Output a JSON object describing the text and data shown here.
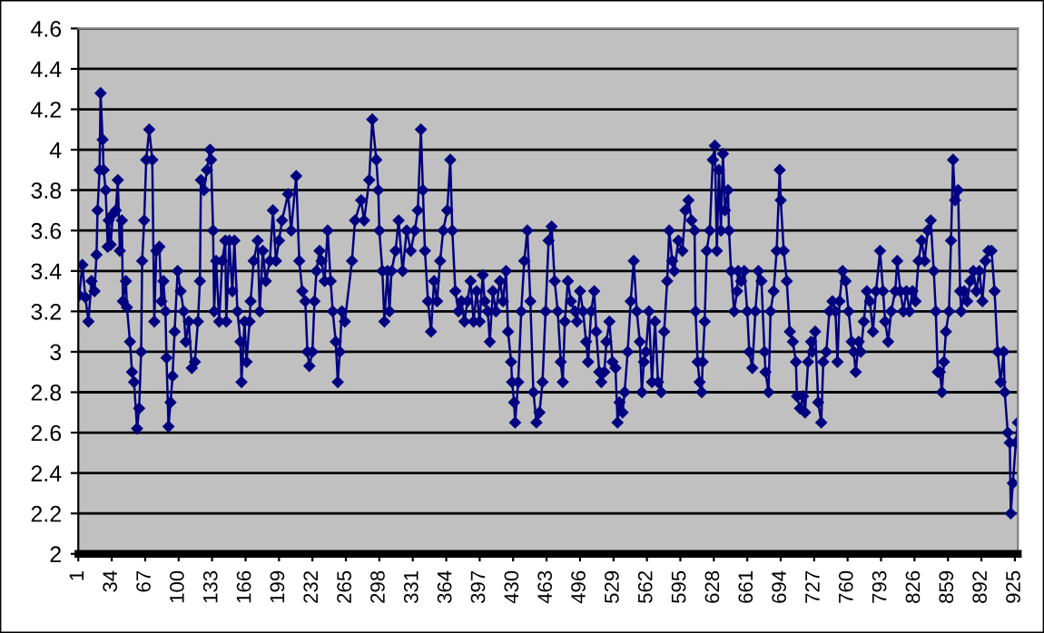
{
  "chart_data": {
    "type": "line",
    "marker": "diamond",
    "line_style": "solid",
    "grid": "y",
    "legend": false,
    "xlim": [
      1,
      928
    ],
    "xticks": [
      1,
      34,
      67,
      100,
      133,
      166,
      199,
      232,
      265,
      298,
      331,
      364,
      397,
      430,
      463,
      496,
      529,
      562,
      595,
      628,
      661,
      694,
      727,
      760,
      793,
      826,
      859,
      892,
      925
    ],
    "ylim": [
      2,
      4.6
    ],
    "yticks": [
      2,
      2.2,
      2.4,
      2.6,
      2.8,
      3,
      3.2,
      3.4,
      3.6,
      3.8,
      4,
      4.2,
      4.4,
      4.6
    ],
    "series": [
      {
        "color": "#000080",
        "x": [
          2,
          5,
          8,
          11,
          14,
          17,
          19,
          20,
          22,
          23,
          25,
          26,
          28,
          30,
          31,
          33,
          35,
          38,
          40,
          42,
          44,
          45,
          48,
          49,
          52,
          54,
          56,
          59,
          61,
          63,
          64,
          66,
          68,
          71,
          74,
          76,
          78,
          81,
          83,
          85,
          87,
          88,
          90,
          92,
          94,
          96,
          99,
          102,
          105,
          107,
          110,
          113,
          116,
          119,
          121,
          122,
          125,
          128,
          131,
          132,
          134,
          135,
          137,
          140,
          143,
          146,
          147,
          150,
          153,
          155,
          158,
          161,
          162,
          165,
          167,
          170,
          171,
          174,
          178,
          180,
          183,
          186,
          190,
          193,
          196,
          199,
          202,
          208,
          211,
          216,
          219,
          222,
          225,
          227,
          229,
          232,
          234,
          236,
          239,
          241,
          244,
          247,
          250,
          252,
          255,
          257,
          259,
          261,
          264,
          271,
          274,
          280,
          283,
          288,
          291,
          295,
          297,
          298,
          301,
          303,
          306,
          308,
          310,
          314,
          317,
          321,
          325,
          329,
          333,
          336,
          339,
          341,
          343,
          346,
          349,
          352,
          355,
          358,
          361,
          365,
          368,
          370,
          373,
          376,
          379,
          382,
          385,
          388,
          391,
          394,
          397,
          400,
          402,
          405,
          407,
          410,
          413,
          417,
          420,
          423,
          425,
          428,
          429,
          431,
          432,
          435,
          438,
          441,
          444,
          447,
          450,
          453,
          456,
          459,
          462,
          465,
          468,
          471,
          474,
          477,
          479,
          481,
          484,
          487,
          491,
          493,
          496,
          499,
          502,
          504,
          507,
          510,
          512,
          515,
          517,
          520,
          522,
          525,
          528,
          531,
          533,
          535,
          538,
          540,
          543,
          546,
          549,
          552,
          555,
          557,
          559,
          561,
          564,
          567,
          570,
          573,
          576,
          579,
          582,
          584,
          587,
          589,
          593,
          597,
          600,
          603,
          606,
          609,
          610,
          612,
          614,
          616,
          617,
          619,
          621,
          624,
          627,
          629,
          631,
          633,
          635,
          637,
          639,
          642,
          643,
          645,
          648,
          651,
          652,
          655,
          658,
          661,
          663,
          666,
          669,
          672,
          675,
          678,
          679,
          682,
          684,
          687,
          690,
          693,
          694,
          697,
          700,
          703,
          706,
          709,
          710,
          713,
          716,
          718,
          721,
          724,
          725,
          728,
          731,
          734,
          736,
          739,
          742,
          745,
          748,
          750,
          752,
          755,
          758,
          761,
          764,
          766,
          768,
          771,
          773,
          776,
          779,
          782,
          785,
          788,
          792,
          795,
          797,
          800,
          803,
          807,
          809,
          812,
          815,
          818,
          821,
          824,
          827,
          830,
          833,
          836,
          839,
          842,
          845,
          847,
          849,
          851,
          853,
          855,
          857,
          860,
          862,
          864,
          866,
          869,
          871,
          872,
          875,
          878,
          881,
          884,
          887,
          890,
          893,
          896,
          899,
          902,
          905,
          908,
          911,
          914,
          915,
          918,
          920,
          921,
          923,
          926,
          928
        ],
        "values": [
          3.28,
          3.43,
          3.27,
          3.15,
          3.35,
          3.3,
          3.48,
          3.7,
          3.9,
          4.28,
          4.05,
          3.9,
          3.8,
          3.52,
          3.65,
          3.53,
          3.68,
          3.7,
          3.85,
          3.5,
          3.65,
          3.25,
          3.35,
          3.22,
          3.05,
          2.9,
          2.85,
          2.62,
          2.72,
          3.0,
          3.45,
          3.65,
          3.95,
          4.1,
          3.95,
          3.15,
          3.5,
          3.52,
          3.25,
          3.35,
          3.2,
          2.97,
          2.63,
          2.75,
          2.88,
          3.1,
          3.4,
          3.3,
          3.2,
          3.05,
          3.15,
          2.92,
          2.95,
          3.15,
          3.35,
          3.85,
          3.8,
          3.9,
          4.0,
          3.95,
          3.6,
          3.2,
          3.45,
          3.15,
          3.45,
          3.55,
          3.15,
          3.55,
          3.3,
          3.55,
          3.2,
          3.05,
          2.85,
          3.15,
          2.95,
          3.15,
          3.25,
          3.45,
          3.55,
          3.2,
          3.5,
          3.35,
          3.45,
          3.7,
          3.45,
          3.55,
          3.65,
          3.78,
          3.6,
          3.87,
          3.45,
          3.3,
          3.25,
          3.0,
          2.93,
          3.0,
          3.25,
          3.4,
          3.5,
          3.45,
          3.35,
          3.6,
          3.35,
          3.2,
          3.05,
          2.85,
          3.0,
          3.2,
          3.15,
          3.45,
          3.65,
          3.75,
          3.65,
          3.85,
          4.15,
          3.95,
          3.8,
          3.6,
          3.4,
          3.15,
          3.4,
          3.2,
          3.4,
          3.5,
          3.65,
          3.4,
          3.6,
          3.5,
          3.6,
          3.7,
          4.1,
          3.8,
          3.5,
          3.25,
          3.1,
          3.35,
          3.25,
          3.45,
          3.6,
          3.7,
          3.95,
          3.6,
          3.3,
          3.2,
          3.25,
          3.15,
          3.25,
          3.35,
          3.15,
          3.3,
          3.15,
          3.38,
          3.25,
          3.2,
          3.05,
          3.3,
          3.2,
          3.35,
          3.25,
          3.4,
          3.1,
          2.95,
          2.85,
          2.75,
          2.65,
          2.85,
          3.2,
          3.45,
          3.6,
          3.25,
          2.8,
          2.65,
          2.7,
          2.85,
          3.2,
          3.55,
          3.62,
          3.35,
          3.2,
          2.95,
          2.85,
          3.15,
          3.35,
          3.25,
          3.2,
          3.15,
          3.3,
          3.2,
          3.05,
          2.95,
          3.2,
          3.3,
          3.1,
          2.9,
          2.85,
          2.9,
          3.05,
          3.15,
          2.95,
          2.92,
          2.65,
          2.75,
          2.7,
          2.8,
          3.0,
          3.25,
          3.45,
          3.2,
          3.05,
          2.8,
          2.95,
          3.0,
          3.2,
          2.85,
          3.15,
          2.85,
          2.8,
          3.1,
          3.35,
          3.6,
          3.45,
          3.4,
          3.55,
          3.5,
          3.7,
          3.75,
          3.65,
          3.6,
          3.2,
          2.95,
          2.85,
          2.8,
          2.95,
          3.15,
          3.5,
          3.6,
          3.95,
          4.02,
          3.5,
          3.9,
          3.6,
          3.98,
          3.7,
          3.8,
          3.6,
          3.4,
          3.2,
          3.3,
          3.4,
          3.35,
          3.4,
          3.2,
          3.0,
          2.92,
          3.2,
          3.4,
          3.35,
          3.0,
          2.9,
          2.8,
          3.2,
          3.3,
          3.5,
          3.9,
          3.75,
          3.5,
          3.35,
          3.1,
          3.05,
          2.95,
          2.78,
          2.72,
          2.78,
          2.7,
          2.95,
          3.05,
          3.0,
          3.1,
          2.75,
          2.65,
          2.95,
          3.0,
          3.2,
          3.25,
          3.2,
          2.95,
          3.25,
          3.4,
          3.35,
          3.2,
          3.05,
          3.0,
          2.9,
          3.05,
          3.0,
          3.15,
          3.3,
          3.25,
          3.1,
          3.3,
          3.5,
          3.3,
          3.15,
          3.05,
          3.2,
          3.3,
          3.45,
          3.3,
          3.2,
          3.3,
          3.2,
          3.3,
          3.25,
          3.45,
          3.55,
          3.45,
          3.6,
          3.65,
          3.4,
          3.2,
          2.9,
          2.9,
          2.8,
          2.95,
          3.1,
          3.2,
          3.55,
          3.95,
          3.75,
          3.8,
          3.3,
          3.2,
          3.3,
          3.25,
          3.35,
          3.4,
          3.3,
          3.4,
          3.25,
          3.45,
          3.5,
          3.5,
          3.3,
          3.0,
          2.85,
          3.0,
          2.8,
          2.6,
          2.55,
          2.2,
          2.35,
          2.55,
          2.65
        ]
      }
    ]
  }
}
